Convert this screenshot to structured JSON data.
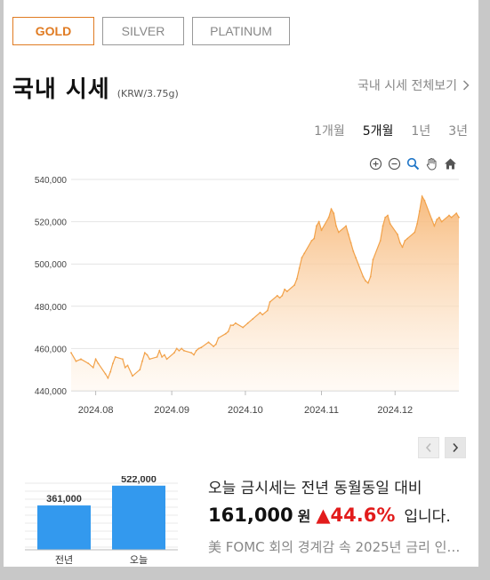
{
  "metal_tabs": [
    {
      "label": "GOLD",
      "active": true
    },
    {
      "label": "SILVER",
      "active": false
    },
    {
      "label": "PLATINUM",
      "active": false
    }
  ],
  "header": {
    "title": "국내 시세",
    "unit": "(KRW/3.75g)",
    "view_all": "국내 시세 전체보기",
    "view_all_icon": "chevron-right-icon"
  },
  "period_tabs": [
    {
      "label": "1개월",
      "active": false
    },
    {
      "label": "5개월",
      "active": true
    },
    {
      "label": "1년",
      "active": false
    },
    {
      "label": "3년",
      "active": false
    }
  ],
  "chart_tools": [
    "zoom-in-icon",
    "zoom-out-icon",
    "magnify-icon",
    "hand-pan-icon",
    "home-icon"
  ],
  "colors": {
    "accent": "#e07b22",
    "line": "#f2a24a",
    "fill_top": "#f7b878",
    "fill_bottom": "#fff6ec",
    "bar": "#3399ee",
    "up": "#e21c1c"
  },
  "chart_data": {
    "type": "area",
    "title": "",
    "xlabel": "",
    "ylabel": "",
    "ylim": [
      440000,
      540000
    ],
    "yticks": [
      {
        "value": 540000,
        "label": "540,000"
      },
      {
        "value": 520000,
        "label": "520,000"
      },
      {
        "value": 500000,
        "label": "500,000"
      },
      {
        "value": 480000,
        "label": "480,000"
      },
      {
        "value": 460000,
        "label": "460,000"
      },
      {
        "value": 440000,
        "label": "440,000"
      }
    ],
    "x_range": [
      "2024-07-22",
      "2024-12-27"
    ],
    "xticks": [
      {
        "date": "2024-08-01",
        "label": "2024.08"
      },
      {
        "date": "2024-09-01",
        "label": "2024.09"
      },
      {
        "date": "2024-10-01",
        "label": "2024.10"
      },
      {
        "date": "2024-11-01",
        "label": "2024.11"
      },
      {
        "date": "2024-12-01",
        "label": "2024.12"
      }
    ],
    "grid": true,
    "series": [
      {
        "points": [
          [
            "2024-07-22",
            458000
          ],
          [
            "2024-07-24",
            454000
          ],
          [
            "2024-07-26",
            455000
          ],
          [
            "2024-07-29",
            453000
          ],
          [
            "2024-07-31",
            451000
          ],
          [
            "2024-08-01",
            455000
          ],
          [
            "2024-08-02",
            453000
          ],
          [
            "2024-08-05",
            448000
          ],
          [
            "2024-08-06",
            446000
          ],
          [
            "2024-08-07",
            449000
          ],
          [
            "2024-08-08",
            453000
          ],
          [
            "2024-08-09",
            456000
          ],
          [
            "2024-08-12",
            455000
          ],
          [
            "2024-08-13",
            451000
          ],
          [
            "2024-08-14",
            452000
          ],
          [
            "2024-08-16",
            447000
          ],
          [
            "2024-08-19",
            450000
          ],
          [
            "2024-08-20",
            454000
          ],
          [
            "2024-08-21",
            458000
          ],
          [
            "2024-08-22",
            457000
          ],
          [
            "2024-08-23",
            455000
          ],
          [
            "2024-08-26",
            456000
          ],
          [
            "2024-08-27",
            459000
          ],
          [
            "2024-08-28",
            456000
          ],
          [
            "2024-08-29",
            457000
          ],
          [
            "2024-08-30",
            455000
          ],
          [
            "2024-09-02",
            458000
          ],
          [
            "2024-09-03",
            460000
          ],
          [
            "2024-09-04",
            459000
          ],
          [
            "2024-09-05",
            460000
          ],
          [
            "2024-09-06",
            459000
          ],
          [
            "2024-09-09",
            458000
          ],
          [
            "2024-09-10",
            457000
          ],
          [
            "2024-09-11",
            459000
          ],
          [
            "2024-09-12",
            460000
          ],
          [
            "2024-09-13",
            460500
          ],
          [
            "2024-09-16",
            463000
          ],
          [
            "2024-09-18",
            461000
          ],
          [
            "2024-09-19",
            462000
          ],
          [
            "2024-09-20",
            465000
          ],
          [
            "2024-09-23",
            467000
          ],
          [
            "2024-09-24",
            468000
          ],
          [
            "2024-09-25",
            471000
          ],
          [
            "2024-09-26",
            471000
          ],
          [
            "2024-09-27",
            472000
          ],
          [
            "2024-09-30",
            470000
          ],
          [
            "2024-10-02",
            472000
          ],
          [
            "2024-10-04",
            474000
          ],
          [
            "2024-10-07",
            477000
          ],
          [
            "2024-10-08",
            476000
          ],
          [
            "2024-10-10",
            478000
          ],
          [
            "2024-10-11",
            482000
          ],
          [
            "2024-10-14",
            485000
          ],
          [
            "2024-10-15",
            484000
          ],
          [
            "2024-10-16",
            485000
          ],
          [
            "2024-10-17",
            488000
          ],
          [
            "2024-10-18",
            487000
          ],
          [
            "2024-10-21",
            490000
          ],
          [
            "2024-10-22",
            493000
          ],
          [
            "2024-10-23",
            498000
          ],
          [
            "2024-10-24",
            503000
          ],
          [
            "2024-10-25",
            505000
          ],
          [
            "2024-10-28",
            511000
          ],
          [
            "2024-10-29",
            512000
          ],
          [
            "2024-10-30",
            518000
          ],
          [
            "2024-10-31",
            520000
          ],
          [
            "2024-11-01",
            516000
          ],
          [
            "2024-11-04",
            522000
          ],
          [
            "2024-11-05",
            526000
          ],
          [
            "2024-11-06",
            524000
          ],
          [
            "2024-11-07",
            518000
          ],
          [
            "2024-11-08",
            515000
          ],
          [
            "2024-11-11",
            518000
          ],
          [
            "2024-11-12",
            514000
          ],
          [
            "2024-11-13",
            510000
          ],
          [
            "2024-11-14",
            506000
          ],
          [
            "2024-11-15",
            503000
          ],
          [
            "2024-11-18",
            494000
          ],
          [
            "2024-11-19",
            492000
          ],
          [
            "2024-11-20",
            491000
          ],
          [
            "2024-11-21",
            494000
          ],
          [
            "2024-11-22",
            502000
          ],
          [
            "2024-11-25",
            511000
          ],
          [
            "2024-11-26",
            518000
          ],
          [
            "2024-11-27",
            522000
          ],
          [
            "2024-11-28",
            523000
          ],
          [
            "2024-11-29",
            519000
          ],
          [
            "2024-12-02",
            514000
          ],
          [
            "2024-12-03",
            510000
          ],
          [
            "2024-12-04",
            508000
          ],
          [
            "2024-12-05",
            511000
          ],
          [
            "2024-12-06",
            512000
          ],
          [
            "2024-12-09",
            515000
          ],
          [
            "2024-12-10",
            519000
          ],
          [
            "2024-12-11",
            525000
          ],
          [
            "2024-12-12",
            532000
          ],
          [
            "2024-12-13",
            530000
          ],
          [
            "2024-12-16",
            521000
          ],
          [
            "2024-12-17",
            518000
          ],
          [
            "2024-12-18",
            521000
          ],
          [
            "2024-12-19",
            522000
          ],
          [
            "2024-12-20",
            520000
          ],
          [
            "2024-12-23",
            523000
          ],
          [
            "2024-12-24",
            522000
          ],
          [
            "2024-12-26",
            524000
          ],
          [
            "2024-12-27",
            522000
          ]
        ]
      }
    ]
  },
  "pager": {
    "prev_icon": "chevron-left-icon",
    "next_icon": "chevron-right-icon"
  },
  "compare_chart": {
    "type": "bar",
    "categories": [
      "전년",
      "오늘"
    ],
    "values": [
      361000,
      522000
    ],
    "value_labels": [
      "361,000",
      "522,000"
    ]
  },
  "summary": {
    "line1": "오늘 금시세는 전년 동월동일 대비",
    "amount": "161,000",
    "won": "원",
    "arrow": "▲",
    "percent": "44.6%",
    "tail": "입니다.",
    "news": "美 FOMC 회의 경계감 속 2025년 금리 인…"
  }
}
